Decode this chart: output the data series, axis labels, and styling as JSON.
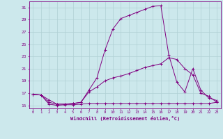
{
  "bg_color": "#cce8ec",
  "line_color": "#800080",
  "grid_color": "#b0d0d4",
  "xlabel": "Windchill (Refroidissement éolien,°C)",
  "xlim": [
    -0.5,
    23.5
  ],
  "ylim": [
    14.5,
    32.0
  ],
  "xticks": [
    0,
    1,
    2,
    3,
    4,
    5,
    6,
    7,
    8,
    9,
    10,
    11,
    12,
    13,
    14,
    15,
    16,
    17,
    18,
    19,
    20,
    21,
    22,
    23
  ],
  "yticks": [
    15,
    17,
    19,
    21,
    23,
    25,
    27,
    29,
    31
  ],
  "line1_x": [
    0,
    1,
    2,
    3,
    4,
    5,
    6,
    7,
    8,
    9,
    10,
    11,
    12,
    13,
    14,
    15,
    16,
    17,
    18,
    19,
    20,
    21,
    22,
    23
  ],
  "line1_y": [
    16.8,
    16.7,
    15.2,
    15.0,
    15.1,
    15.1,
    15.2,
    15.3,
    15.3,
    15.3,
    15.3,
    15.3,
    15.3,
    15.3,
    15.3,
    15.3,
    15.3,
    15.3,
    15.3,
    15.3,
    15.3,
    15.3,
    15.3,
    15.5
  ],
  "line2_x": [
    0,
    1,
    2,
    3,
    4,
    5,
    6,
    7,
    8,
    9,
    10,
    11,
    12,
    13,
    14,
    15,
    16,
    17,
    18,
    19,
    20,
    21,
    22,
    23
  ],
  "line2_y": [
    16.8,
    16.7,
    15.9,
    15.2,
    15.2,
    15.3,
    15.5,
    17.2,
    18.0,
    19.0,
    19.5,
    19.8,
    20.2,
    20.7,
    21.2,
    21.5,
    21.8,
    22.8,
    22.5,
    21.0,
    20.0,
    17.0,
    16.5,
    15.5
  ],
  "line3_x": [
    0,
    1,
    2,
    3,
    4,
    5,
    6,
    7,
    8,
    9,
    10,
    11,
    12,
    13,
    14,
    15,
    16,
    17,
    18,
    19,
    20,
    21,
    22,
    23
  ],
  "line3_y": [
    16.8,
    16.7,
    15.5,
    15.2,
    15.2,
    15.3,
    15.5,
    17.5,
    19.5,
    24.0,
    27.5,
    29.2,
    29.7,
    30.2,
    30.7,
    31.2,
    31.3,
    23.2,
    18.8,
    17.2,
    21.0,
    17.5,
    16.2,
    15.8
  ]
}
